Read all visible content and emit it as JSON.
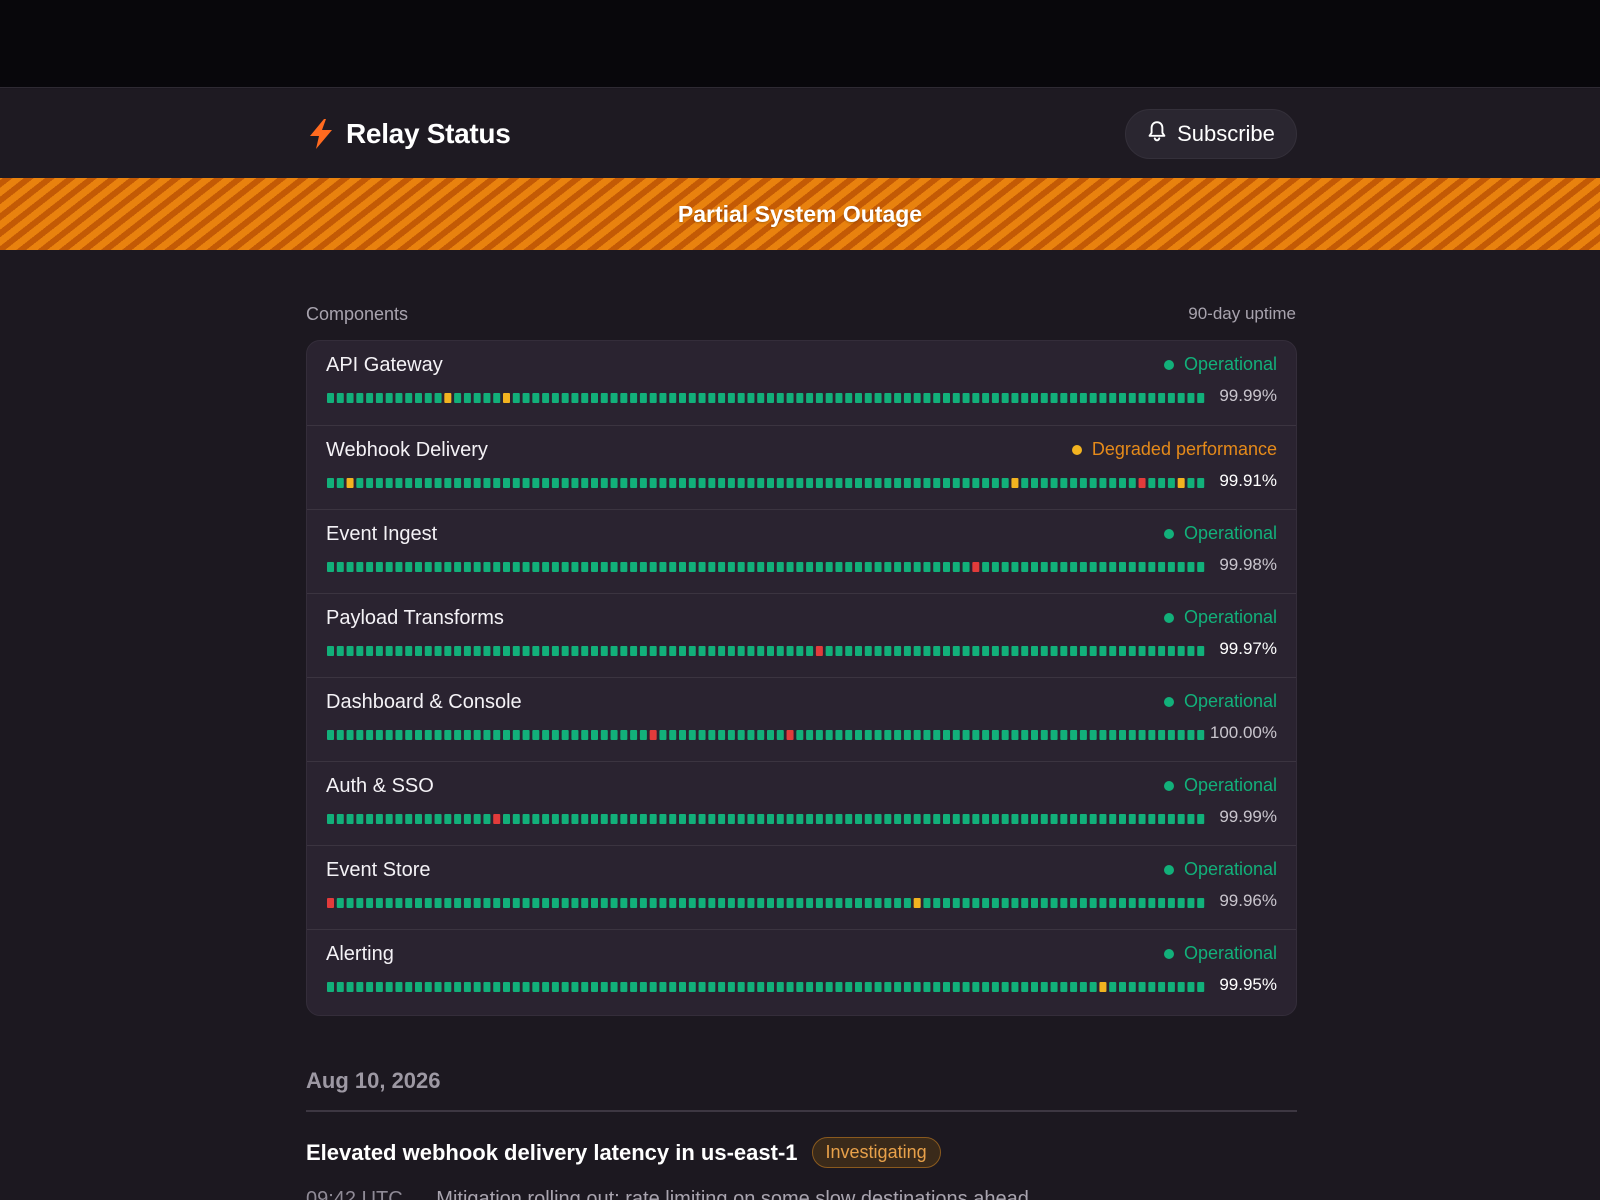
{
  "colors": {
    "operational": "#12b07a",
    "degraded": "#f2b320",
    "outage": "#e23b3b",
    "degraded_text": "#e58a1a",
    "accent": "#ff6a1f"
  },
  "header": {
    "brand_icon": "bolt-icon",
    "title": "Relay Status",
    "subscribe_icon": "bell-icon",
    "subscribe_label": "Subscribe"
  },
  "banner": {
    "text": "Partial System Outage"
  },
  "components_section": {
    "title": "Components",
    "uptime_label": "90-day uptime"
  },
  "components": [
    {
      "name": "API Gateway",
      "status": "Operational",
      "status_kind": "operational",
      "uptime": "99.99%",
      "incidents": [
        [
          12,
          "degraded"
        ],
        [
          18,
          "degraded"
        ]
      ]
    },
    {
      "name": "Webhook Delivery",
      "status": "Degraded performance",
      "status_kind": "degraded",
      "uptime": "99.91%",
      "incidents": [
        [
          2,
          "degraded"
        ],
        [
          70,
          "degraded"
        ],
        [
          83,
          "outage"
        ],
        [
          87,
          "degraded"
        ]
      ]
    },
    {
      "name": "Event Ingest",
      "status": "Operational",
      "status_kind": "operational",
      "uptime": "99.98%",
      "incidents": [
        [
          66,
          "outage"
        ]
      ]
    },
    {
      "name": "Payload Transforms",
      "status": "Operational",
      "status_kind": "operational",
      "uptime": "99.97%",
      "incidents": [
        [
          50,
          "outage"
        ]
      ]
    },
    {
      "name": "Dashboard & Console",
      "status": "Operational",
      "status_kind": "operational",
      "uptime": "100.00%",
      "incidents": [
        [
          33,
          "outage"
        ],
        [
          47,
          "outage"
        ]
      ]
    },
    {
      "name": "Auth & SSO",
      "status": "Operational",
      "status_kind": "operational",
      "uptime": "99.99%",
      "incidents": [
        [
          17,
          "outage"
        ]
      ]
    },
    {
      "name": "Event Store",
      "status": "Operational",
      "status_kind": "operational",
      "uptime": "99.96%",
      "incidents": [
        [
          0,
          "outage"
        ],
        [
          60,
          "degraded"
        ]
      ]
    },
    {
      "name": "Alerting",
      "status": "Operational",
      "status_kind": "operational",
      "uptime": "99.95%",
      "incidents": [
        [
          79,
          "degraded"
        ]
      ]
    }
  ],
  "history": {
    "date": "Aug 10, 2026",
    "incident_title": "Elevated webhook delivery latency in us-east-1",
    "incident_status": "Investigating",
    "update_time": "09:42 UTC",
    "update_text": "Mitigation rolling out; rate limiting on some slow destinations ahead"
  }
}
